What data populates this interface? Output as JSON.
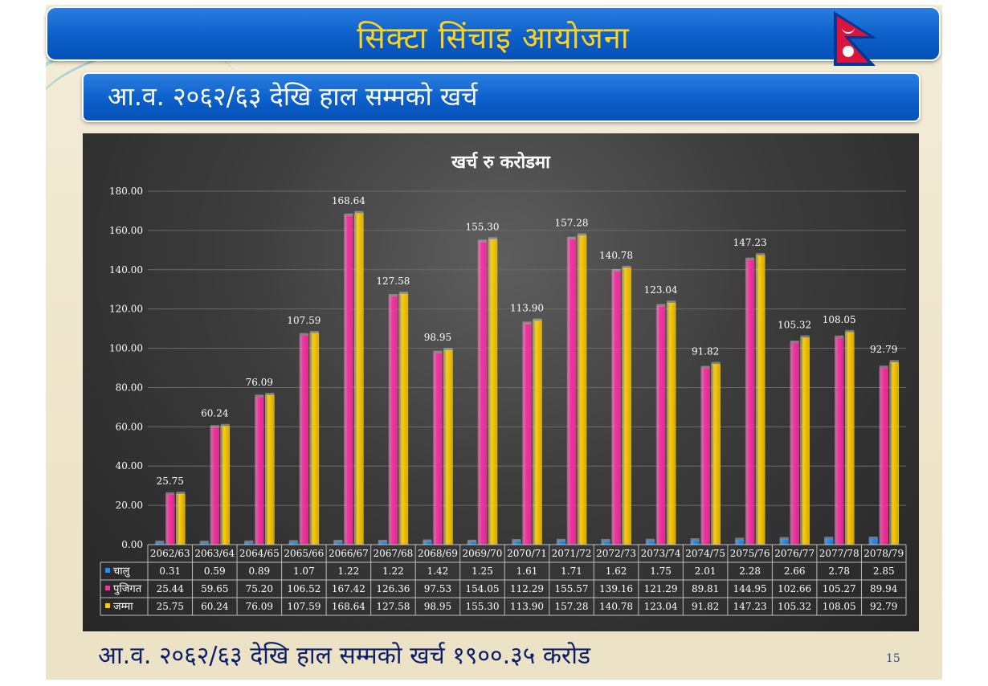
{
  "slide": {
    "title": "सिक्टा सिंचाइ आयोजना",
    "subtitle": "आ.व. २०६२/६३ देखि हाल सम्मको खर्च",
    "footer": "आ.व. २०६२/६३ देखि हाल सम्मको खर्च १९००.३५ करोड",
    "page_number": "15"
  },
  "colors": {
    "title_bar": "#0b5fc9",
    "title_text": "#ffd21e",
    "chalu": "#1e90ff",
    "pujigat": "#ff2fa6",
    "jamma": "#ffcc00"
  },
  "chart_data": {
    "type": "bar",
    "title": "खर्च रु करोडमा",
    "categories": [
      "2062/63",
      "2063/64",
      "2064/65",
      "2065/66",
      "2066/67",
      "2067/68",
      "2068/69",
      "2069/70",
      "2070/71",
      "2071/72",
      "2072/73",
      "2073/74",
      "2074/75",
      "2075/76",
      "2076/77",
      "2077/78",
      "2078/79"
    ],
    "series": [
      {
        "name": "चालु",
        "color": "#1e90ff",
        "values": [
          0.31,
          0.59,
          0.89,
          1.07,
          1.22,
          1.22,
          1.42,
          1.25,
          1.61,
          1.71,
          1.62,
          1.75,
          2.01,
          2.28,
          2.66,
          2.78,
          2.85
        ],
        "display": [
          "0.31",
          "0.59",
          "0.89",
          "1.07",
          "1.22",
          "1.22",
          "1.42",
          "1.25",
          "1.61",
          "1.71",
          "1.62",
          "1.75",
          "2.01",
          "2.28",
          "2.66",
          "2.78",
          "2.85"
        ]
      },
      {
        "name": "पुजिगत",
        "color": "#ff2fa6",
        "values": [
          25.44,
          59.65,
          75.2,
          106.52,
          167.42,
          126.36,
          97.53,
          154.05,
          112.29,
          155.57,
          139.16,
          121.29,
          89.81,
          144.95,
          102.66,
          105.27,
          89.94
        ],
        "display": [
          "25.44",
          "59.65",
          "75.20",
          "106.52",
          "167.42",
          "126.36",
          "97.53",
          "154.05",
          "112.29",
          "155.57",
          "139.16",
          "121.29",
          "89.81",
          "144.95",
          "102.66",
          "105.27",
          "89.94"
        ]
      },
      {
        "name": "जम्मा",
        "color": "#ffcc00",
        "values": [
          25.75,
          60.24,
          76.09,
          107.59,
          168.64,
          127.58,
          98.95,
          155.3,
          113.9,
          157.28,
          140.78,
          123.04,
          91.82,
          147.23,
          105.32,
          108.05,
          92.79
        ],
        "display": [
          "25.75",
          "60.24",
          "76.09",
          "107.59",
          "168.64",
          "127.58",
          "98.95",
          "155.30",
          "113.90",
          "157.28",
          "140.78",
          "123.04",
          "91.82",
          "147.23",
          "105.32",
          "108.05",
          "92.79"
        ]
      }
    ],
    "data_labels_series": "जम्मा",
    "y_ticks": [
      "0.00",
      "20.00",
      "40.00",
      "60.00",
      "80.00",
      "100.00",
      "120.00",
      "140.00",
      "160.00",
      "180.00"
    ],
    "ylim": [
      0,
      180
    ],
    "grid": true,
    "legend": "data-table"
  }
}
